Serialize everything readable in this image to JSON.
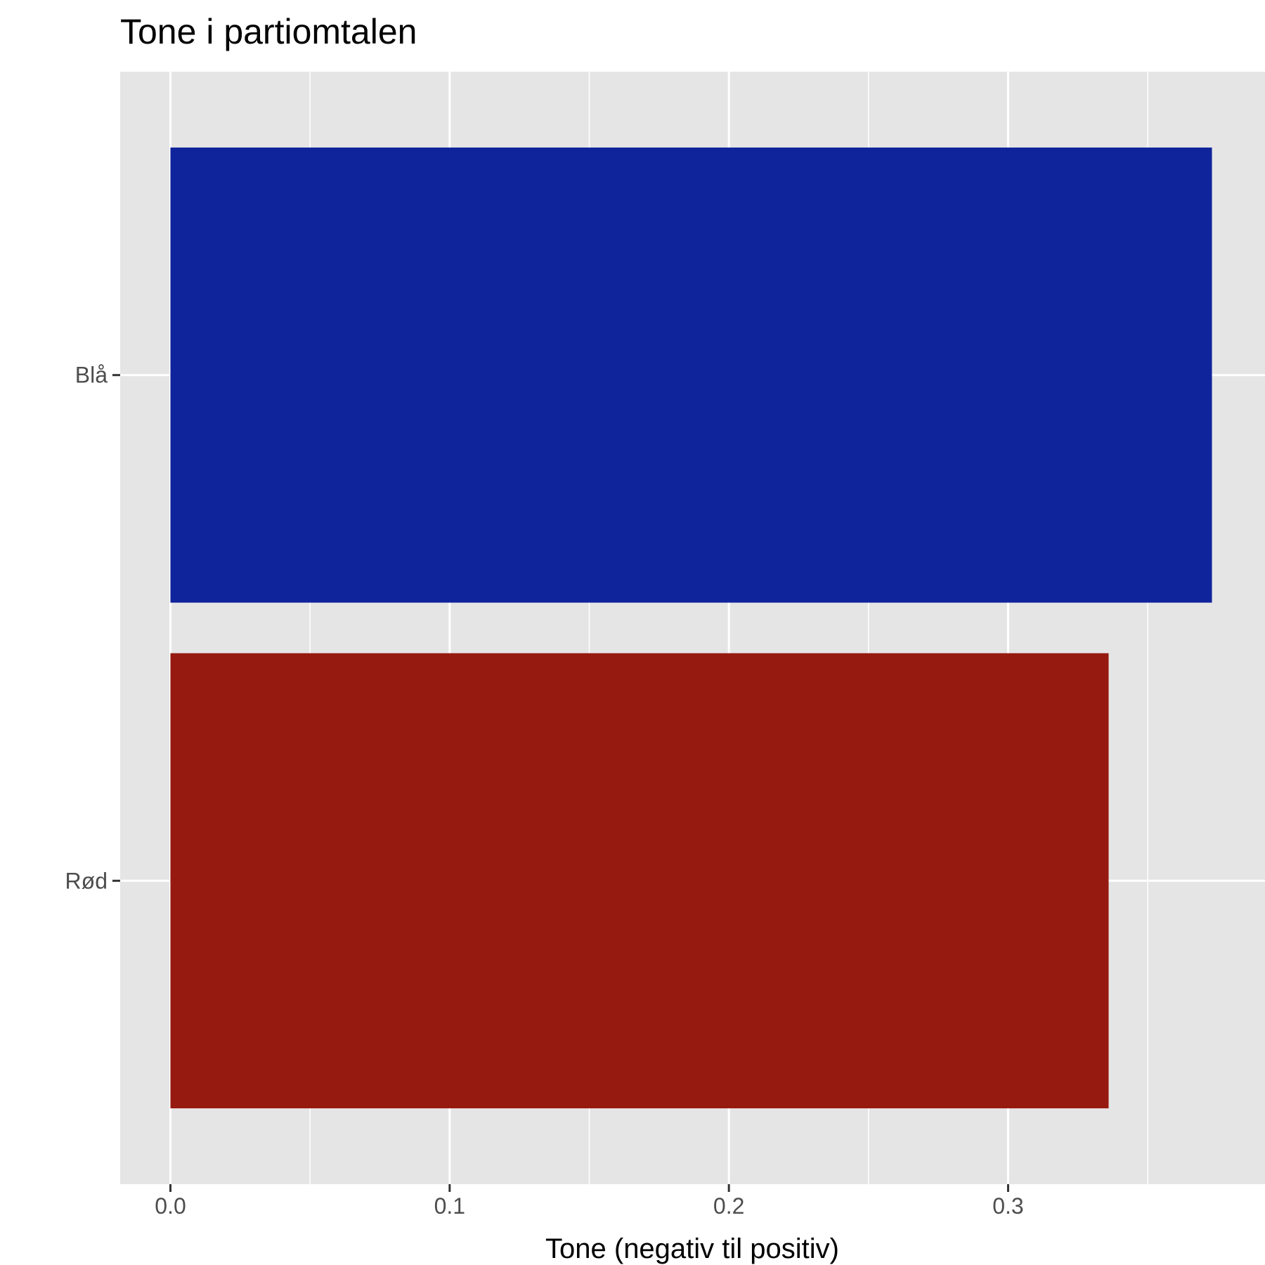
{
  "chart_data": {
    "type": "bar",
    "orientation": "horizontal",
    "title": "Tone i partiomtalen",
    "xlabel": "Tone (negativ til positiv)",
    "ylabel": "",
    "categories": [
      "Blå",
      "Rød"
    ],
    "values": [
      0.373,
      0.336
    ],
    "colors": [
      "#0F239B",
      "#961A0F"
    ],
    "xlim": [
      -0.018,
      0.392
    ],
    "xticks": [
      0.0,
      0.1,
      0.2,
      0.3
    ],
    "xtick_labels": [
      "0.0",
      "0.1",
      "0.2",
      "0.3"
    ],
    "grid": true,
    "panel_background": "#E5E5E5",
    "grid_color": "#FFFFFF"
  }
}
